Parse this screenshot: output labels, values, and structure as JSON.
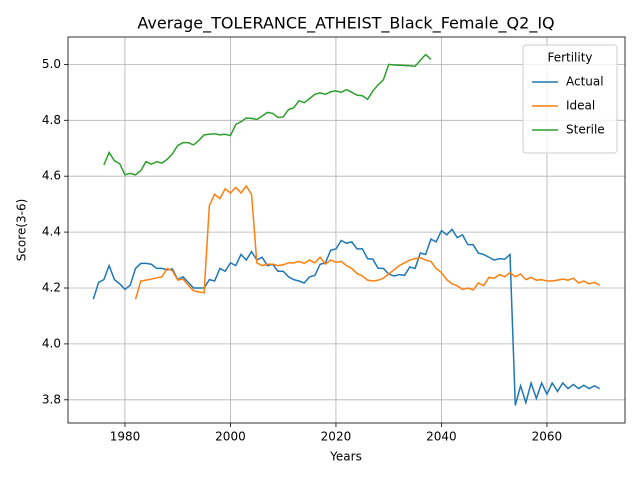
{
  "chart_data": {
    "type": "line",
    "title": "Average_TOLERANCE_ATHEIST_Black_Female_Q2_IQ",
    "xlabel": "Years",
    "ylabel": "Score(3-6)",
    "legend_title": "Fertility",
    "legend": "upper right",
    "grid": true,
    "xlim": [
      1969.2,
      2074.8
    ],
    "ylim": [
      3.717,
      5.098
    ],
    "xticks": [
      1980,
      2000,
      2020,
      2040,
      2060
    ],
    "yticks": [
      3.8,
      {
        "value": 4.0,
        "label": "4.0"
      },
      4.2,
      4.4,
      4.6,
      4.8,
      {
        "value": 5.0,
        "label": "5.0"
      }
    ],
    "x": [
      1974,
      1975,
      1976,
      1977,
      1978,
      1979,
      1980,
      1981,
      1982,
      1983,
      1984,
      1985,
      1986,
      1987,
      1988,
      1989,
      1990,
      1991,
      1992,
      1993,
      1994,
      1995,
      1996,
      1997,
      1998,
      1999,
      2000,
      2001,
      2002,
      2003,
      2004,
      2005,
      2006,
      2007,
      2008,
      2009,
      2010,
      2011,
      2012,
      2013,
      2014,
      2015,
      2016,
      2017,
      2018,
      2019,
      2020,
      2021,
      2022,
      2023,
      2024,
      2025,
      2026,
      2027,
      2028,
      2029,
      2030,
      2031,
      2032,
      2033,
      2034,
      2035,
      2036,
      2037,
      2038,
      2039,
      2040,
      2041,
      2042,
      2043,
      2044,
      2045,
      2046,
      2047,
      2048,
      2049,
      2050,
      2051,
      2052,
      2053,
      2054,
      2055,
      2056,
      2057,
      2058,
      2059,
      2060,
      2061,
      2062,
      2063,
      2064,
      2065,
      2066,
      2067,
      2068,
      2069,
      2070
    ],
    "series": [
      {
        "name": "Actual",
        "color": "#1f77b4",
        "values": [
          4.16,
          4.22,
          4.23,
          4.28,
          4.23,
          4.215,
          4.195,
          4.21,
          4.27,
          4.288,
          4.288,
          4.285,
          4.27,
          4.27,
          4.265,
          4.268,
          4.23,
          4.24,
          4.22,
          4.2,
          4.2,
          4.2,
          4.23,
          4.225,
          4.27,
          4.26,
          4.29,
          4.28,
          4.32,
          4.3,
          4.33,
          4.3,
          4.31,
          4.28,
          4.285,
          4.26,
          4.26,
          4.24,
          4.23,
          4.225,
          4.218,
          4.24,
          4.245,
          4.285,
          4.29,
          4.335,
          4.34,
          4.37,
          4.36,
          4.365,
          4.34,
          4.34,
          4.305,
          4.303,
          4.27,
          4.27,
          4.25,
          4.243,
          4.248,
          4.245,
          4.275,
          4.27,
          4.325,
          4.32,
          4.375,
          4.365,
          4.405,
          4.39,
          4.41,
          4.38,
          4.39,
          4.355,
          4.355,
          4.325,
          4.32,
          4.31,
          4.3,
          4.305,
          4.303,
          4.32,
          3.78,
          3.85,
          3.79,
          3.86,
          3.805,
          3.86,
          3.82,
          3.86,
          3.83,
          3.86,
          3.84,
          3.855,
          3.84,
          3.852,
          3.84,
          3.85,
          3.84
        ]
      },
      {
        "name": "Ideal",
        "color": "#ff7f0e",
        "values": [
          null,
          null,
          null,
          null,
          null,
          null,
          null,
          null,
          4.16,
          4.225,
          4.228,
          4.232,
          4.236,
          4.24,
          4.27,
          4.262,
          4.228,
          4.232,
          4.21,
          4.19,
          4.186,
          4.183,
          4.495,
          4.535,
          4.52,
          4.555,
          4.54,
          4.56,
          4.54,
          4.565,
          4.535,
          4.29,
          4.28,
          4.285,
          4.285,
          4.28,
          4.283,
          4.29,
          4.29,
          4.295,
          4.288,
          4.3,
          4.29,
          4.31,
          4.285,
          4.3,
          4.292,
          4.295,
          4.28,
          4.27,
          4.252,
          4.243,
          4.228,
          4.225,
          4.228,
          4.235,
          4.25,
          4.265,
          4.28,
          4.29,
          4.3,
          4.305,
          4.308,
          4.3,
          4.295,
          4.27,
          4.255,
          4.23,
          4.215,
          4.208,
          4.195,
          4.2,
          4.193,
          4.218,
          4.208,
          4.238,
          4.235,
          4.248,
          4.24,
          4.255,
          4.24,
          4.25,
          4.23,
          4.238,
          4.228,
          4.23,
          4.225,
          4.225,
          4.228,
          4.232,
          4.228,
          4.235,
          4.218,
          4.225,
          4.215,
          4.22,
          4.21
        ]
      },
      {
        "name": "Sterile",
        "color": "#2ca02c",
        "values": [
          null,
          null,
          4.64,
          4.685,
          4.655,
          4.645,
          4.605,
          4.61,
          4.605,
          4.62,
          4.652,
          4.643,
          4.652,
          4.647,
          4.66,
          4.68,
          4.71,
          4.72,
          4.72,
          4.712,
          4.728,
          4.748,
          4.75,
          4.752,
          4.748,
          4.75,
          4.745,
          4.785,
          4.795,
          4.808,
          4.807,
          4.803,
          4.815,
          4.828,
          4.825,
          4.81,
          4.812,
          4.838,
          4.845,
          4.87,
          4.863,
          4.878,
          4.893,
          4.898,
          4.893,
          4.902,
          4.905,
          4.9,
          4.91,
          4.9,
          4.89,
          4.888,
          4.875,
          4.905,
          4.927,
          4.945,
          5.0,
          4.998,
          4.997,
          4.996,
          4.995,
          4.993,
          5.015,
          5.035,
          5.018,
          null,
          null,
          null,
          null,
          null,
          null,
          null,
          null,
          null,
          null,
          null,
          null,
          null,
          null,
          null,
          null,
          null,
          null,
          null,
          null,
          null,
          null,
          null,
          null,
          null,
          null,
          null,
          null,
          null,
          null,
          null,
          null
        ]
      }
    ]
  }
}
